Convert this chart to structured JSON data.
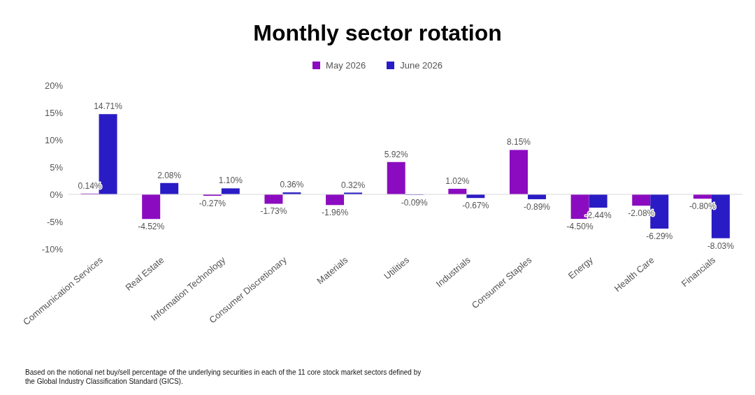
{
  "chart_data": {
    "type": "bar",
    "title": "Monthly sector rotation",
    "categories": [
      "Communication Services",
      "Real Estate",
      "Information Technology",
      "Consumer Discretionary",
      "Materials",
      "Utilities",
      "Industrials",
      "Consumer Staples",
      "Energy",
      "Health Care",
      "Financials"
    ],
    "series": [
      {
        "name": "May 2026",
        "color": "#8b0cc0",
        "values": [
          0.14,
          -4.52,
          -0.27,
          -1.73,
          -1.96,
          5.92,
          1.02,
          8.15,
          -4.5,
          -2.08,
          -0.8
        ],
        "value_labels": [
          "0.14%",
          "-4.52%",
          "-0.27%",
          "-1.73%",
          "-1.96%",
          "5.92%",
          "1.02%",
          "8.15%",
          "-4.50%",
          "-2.08%",
          "-0.80%"
        ]
      },
      {
        "name": "June 2026",
        "color": "#2a1cc4",
        "values": [
          14.71,
          2.08,
          1.1,
          0.36,
          0.32,
          -0.09,
          -0.67,
          -0.89,
          -2.44,
          -6.29,
          -8.03
        ],
        "value_labels": [
          "14.71%",
          "2.08%",
          "1.10%",
          "0.36%",
          "0.32%",
          "-0.09%",
          "-0.67%",
          "-0.89%",
          "-2.44%",
          "-6.29%",
          "-8.03%"
        ]
      }
    ],
    "ylim": [
      -10,
      20
    ],
    "yticks": [
      {
        "value": -10,
        "label": "-10%"
      },
      {
        "value": -5,
        "label": "-5%"
      },
      {
        "value": 0,
        "label": "0%"
      },
      {
        "value": 5,
        "label": "5%"
      },
      {
        "value": 10,
        "label": "10%"
      },
      {
        "value": 15,
        "label": "15%"
      },
      {
        "value": 20,
        "label": "20%"
      }
    ],
    "ref_lines": [
      {
        "axis": "y",
        "value": 0,
        "color": "#d9d9d9"
      }
    ],
    "legend": "top",
    "annotations": [
      "Based on the notional net buy/sell percentage of the underlying securities in each of the 11 core stock market sectors defined by the Global Industry Classification Standard (GICS)."
    ]
  }
}
